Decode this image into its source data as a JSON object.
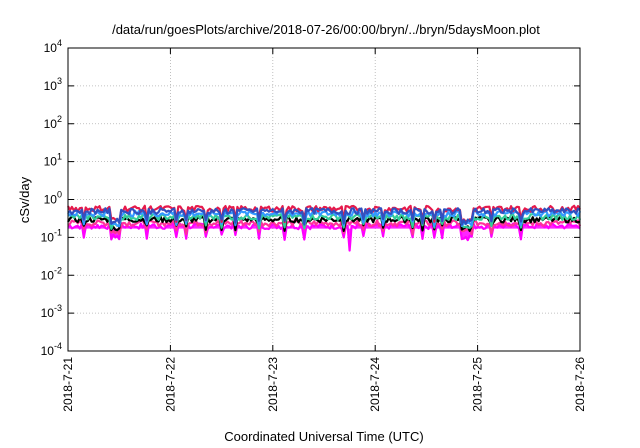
{
  "chart_data": {
    "type": "line",
    "title": "/data/run/goesPlots/archive/2018-07-26/00:00/bryn/../bryn/5daysMoon.plot",
    "xlabel": "Coordinated Universal Time (UTC)",
    "ylabel": "cSv/day",
    "y_scale": "log",
    "ylim": [
      0.0001,
      10000
    ],
    "xlim": [
      "2018-7-21",
      "2018-7-26"
    ],
    "grid": true,
    "y_ticks": [
      {
        "base": "10",
        "exp": "-4"
      },
      {
        "base": "10",
        "exp": "-3"
      },
      {
        "base": "10",
        "exp": "-2"
      },
      {
        "base": "10",
        "exp": "-1"
      },
      {
        "base": "10",
        "exp": "0"
      },
      {
        "base": "10",
        "exp": "1"
      },
      {
        "base": "10",
        "exp": "2"
      },
      {
        "base": "10",
        "exp": "3"
      },
      {
        "base": "10",
        "exp": "4"
      }
    ],
    "x_ticks": [
      "2018-7-21",
      "2018-7-22",
      "2018-7-23",
      "2018-7-24",
      "2018-7-25",
      "2018-7-26"
    ],
    "series": [
      {
        "color": "#ff00ff",
        "level": 0.2,
        "dips": 0.12,
        "fill": true
      },
      {
        "color": "#ff3399",
        "level": 0.24,
        "dips": 0.17
      },
      {
        "color": "#000000",
        "level": 0.3,
        "dips": 0.21
      },
      {
        "color": "#33cc99",
        "level": 0.35,
        "dips": 0.24
      },
      {
        "color": "#3399ff",
        "level": 0.43,
        "dips": 0.28
      },
      {
        "color": "#e6194b",
        "level": 0.58,
        "dips": 0.35
      },
      {
        "color": "#3050c0",
        "level": 0.5,
        "dips": 0.31
      }
    ]
  }
}
